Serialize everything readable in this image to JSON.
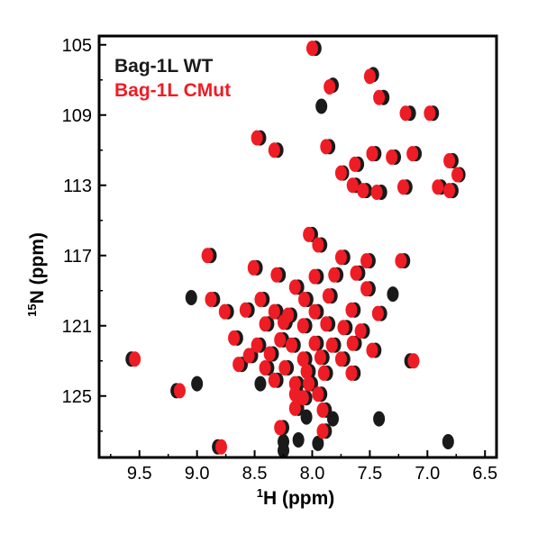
{
  "chart_data": {
    "type": "scatter",
    "title": "",
    "xlabel": "1H (ppm)",
    "xlabel_sup": "1",
    "xlabel_main": "H (ppm)",
    "ylabel": "15N (ppm)",
    "ylabel_sup": "15",
    "ylabel_main": "N (ppm)",
    "xlim": [
      9.85,
      6.4
    ],
    "ylim": [
      128.5,
      104.5
    ],
    "x_reversed": true,
    "y_reversed": true,
    "x_ticks": [
      9.5,
      9.0,
      8.5,
      8.0,
      7.5,
      7.0,
      6.5
    ],
    "x_tick_labels": [
      "9.5",
      "9.0",
      "8.5",
      "8.0",
      "7.5",
      "7.0",
      "6.5"
    ],
    "y_ticks": [
      105,
      109,
      113,
      117,
      121,
      125
    ],
    "y_tick_labels": [
      "105",
      "109",
      "113",
      "117",
      "121",
      "125"
    ],
    "grid": false,
    "legend_position": "top-left",
    "series": [
      {
        "name": "Bag-1L WT",
        "color": "#1a1a1a",
        "points": [
          [
            7.97,
            105.2
          ],
          [
            7.47,
            106.7
          ],
          [
            7.82,
            107.3
          ],
          [
            7.38,
            108.0
          ],
          [
            7.15,
            108.9
          ],
          [
            6.95,
            108.9
          ],
          [
            7.92,
            108.5
          ],
          [
            8.45,
            110.3
          ],
          [
            8.3,
            111.0
          ],
          [
            7.85,
            110.8
          ],
          [
            7.73,
            112.3
          ],
          [
            7.6,
            111.8
          ],
          [
            7.45,
            111.2
          ],
          [
            7.28,
            111.4
          ],
          [
            7.1,
            111.2
          ],
          [
            6.78,
            111.6
          ],
          [
            6.72,
            112.4
          ],
          [
            7.62,
            113.0
          ],
          [
            7.4,
            113.4
          ],
          [
            7.18,
            113.1
          ],
          [
            6.88,
            113.1
          ],
          [
            6.78,
            113.3
          ],
          [
            7.53,
            113.3
          ],
          [
            8.0,
            115.8
          ],
          [
            7.92,
            116.4
          ],
          [
            8.88,
            117.0
          ],
          [
            7.72,
            117.1
          ],
          [
            7.5,
            117.3
          ],
          [
            7.2,
            117.3
          ],
          [
            8.48,
            117.7
          ],
          [
            8.28,
            118.1
          ],
          [
            7.95,
            118.2
          ],
          [
            7.78,
            118.1
          ],
          [
            7.59,
            118.0
          ],
          [
            8.12,
            118.8
          ],
          [
            7.5,
            118.9
          ],
          [
            7.3,
            119.2
          ],
          [
            9.05,
            119.4
          ],
          [
            8.85,
            119.5
          ],
          [
            8.42,
            119.5
          ],
          [
            8.04,
            119.5
          ],
          [
            7.83,
            119.3
          ],
          [
            8.73,
            120.2
          ],
          [
            8.55,
            120.1
          ],
          [
            8.3,
            120.2
          ],
          [
            8.18,
            120.4
          ],
          [
            7.95,
            120.2
          ],
          [
            7.63,
            120.1
          ],
          [
            7.4,
            120.3
          ],
          [
            8.38,
            120.9
          ],
          [
            8.22,
            120.8
          ],
          [
            8.05,
            121.0
          ],
          [
            7.85,
            120.9
          ],
          [
            7.7,
            121.1
          ],
          [
            7.55,
            121.3
          ],
          [
            8.65,
            121.7
          ],
          [
            8.45,
            122.1
          ],
          [
            8.25,
            121.8
          ],
          [
            8.15,
            122.1
          ],
          [
            7.95,
            122.0
          ],
          [
            7.8,
            122.1
          ],
          [
            7.62,
            122.0
          ],
          [
            7.45,
            122.4
          ],
          [
            8.52,
            122.7
          ],
          [
            8.34,
            122.6
          ],
          [
            8.05,
            122.9
          ],
          [
            7.9,
            122.8
          ],
          [
            7.72,
            122.9
          ],
          [
            9.57,
            122.9
          ],
          [
            7.15,
            123.0
          ],
          [
            8.38,
            123.4
          ],
          [
            8.21,
            123.4
          ],
          [
            8.02,
            123.6
          ],
          [
            7.87,
            123.7
          ],
          [
            7.63,
            123.7
          ],
          [
            8.61,
            123.2
          ],
          [
            8.3,
            124.1
          ],
          [
            8.12,
            124.3
          ],
          [
            8.0,
            124.3
          ],
          [
            9.18,
            124.7
          ],
          [
            8.12,
            124.9
          ],
          [
            8.05,
            125.1
          ],
          [
            7.92,
            124.9
          ],
          [
            8.45,
            124.3
          ],
          [
            8.12,
            125.7
          ],
          [
            7.88,
            125.8
          ],
          [
            8.05,
            126.2
          ],
          [
            8.25,
            126.8
          ],
          [
            7.88,
            127.0
          ],
          [
            8.25,
            127.6
          ],
          [
            7.95,
            127.7
          ],
          [
            8.82,
            127.9
          ],
          [
            8.25,
            128.1
          ],
          [
            7.82,
            126.3
          ],
          [
            7.42,
            126.3
          ],
          [
            6.82,
            127.6
          ],
          [
            9.0,
            124.3
          ],
          [
            8.12,
            127.5
          ]
        ]
      },
      {
        "name": "Bag-1L CMut",
        "color": "#ee1c24",
        "points": [
          [
            8.0,
            105.2
          ],
          [
            7.5,
            106.8
          ],
          [
            7.85,
            107.4
          ],
          [
            7.42,
            108.0
          ],
          [
            7.19,
            108.9
          ],
          [
            6.98,
            108.9
          ],
          [
            8.48,
            110.3
          ],
          [
            8.33,
            111.0
          ],
          [
            7.88,
            110.8
          ],
          [
            7.75,
            112.3
          ],
          [
            7.63,
            111.8
          ],
          [
            7.48,
            111.2
          ],
          [
            7.31,
            111.4
          ],
          [
            7.13,
            111.2
          ],
          [
            6.81,
            111.6
          ],
          [
            6.74,
            112.4
          ],
          [
            7.65,
            113.0
          ],
          [
            7.44,
            113.4
          ],
          [
            7.21,
            113.1
          ],
          [
            6.91,
            113.1
          ],
          [
            6.81,
            113.3
          ],
          [
            7.56,
            113.3
          ],
          [
            8.03,
            115.8
          ],
          [
            7.95,
            116.4
          ],
          [
            8.91,
            117.0
          ],
          [
            7.75,
            117.1
          ],
          [
            7.53,
            117.3
          ],
          [
            7.23,
            117.3
          ],
          [
            8.51,
            117.7
          ],
          [
            8.31,
            118.1
          ],
          [
            7.98,
            118.2
          ],
          [
            7.81,
            118.1
          ],
          [
            7.62,
            118.0
          ],
          [
            8.15,
            118.8
          ],
          [
            7.53,
            118.9
          ],
          [
            8.88,
            119.5
          ],
          [
            8.45,
            119.5
          ],
          [
            8.07,
            119.5
          ],
          [
            7.86,
            119.3
          ],
          [
            8.76,
            120.2
          ],
          [
            8.58,
            120.1
          ],
          [
            8.33,
            120.2
          ],
          [
            8.21,
            120.4
          ],
          [
            7.98,
            120.2
          ],
          [
            7.66,
            120.1
          ],
          [
            7.43,
            120.3
          ],
          [
            8.41,
            120.9
          ],
          [
            8.25,
            120.8
          ],
          [
            8.08,
            121.0
          ],
          [
            7.88,
            120.9
          ],
          [
            7.73,
            121.1
          ],
          [
            7.58,
            121.3
          ],
          [
            8.68,
            121.7
          ],
          [
            8.48,
            122.1
          ],
          [
            8.28,
            121.8
          ],
          [
            8.18,
            122.1
          ],
          [
            7.98,
            122.0
          ],
          [
            7.83,
            122.1
          ],
          [
            7.65,
            122.0
          ],
          [
            7.48,
            122.4
          ],
          [
            8.55,
            122.7
          ],
          [
            8.37,
            122.6
          ],
          [
            8.08,
            122.9
          ],
          [
            7.93,
            122.8
          ],
          [
            7.75,
            122.9
          ],
          [
            9.54,
            122.9
          ],
          [
            7.12,
            123.0
          ],
          [
            8.41,
            123.4
          ],
          [
            8.24,
            123.4
          ],
          [
            8.05,
            123.6
          ],
          [
            7.9,
            123.7
          ],
          [
            7.66,
            123.7
          ],
          [
            8.64,
            123.2
          ],
          [
            8.33,
            124.1
          ],
          [
            8.15,
            124.3
          ],
          [
            8.03,
            124.3
          ],
          [
            9.15,
            124.7
          ],
          [
            8.15,
            124.9
          ],
          [
            8.08,
            125.1
          ],
          [
            7.95,
            124.9
          ],
          [
            8.15,
            125.7
          ],
          [
            7.91,
            125.8
          ],
          [
            8.28,
            126.8
          ],
          [
            7.91,
            127.0
          ],
          [
            8.79,
            127.9
          ]
        ]
      }
    ]
  }
}
